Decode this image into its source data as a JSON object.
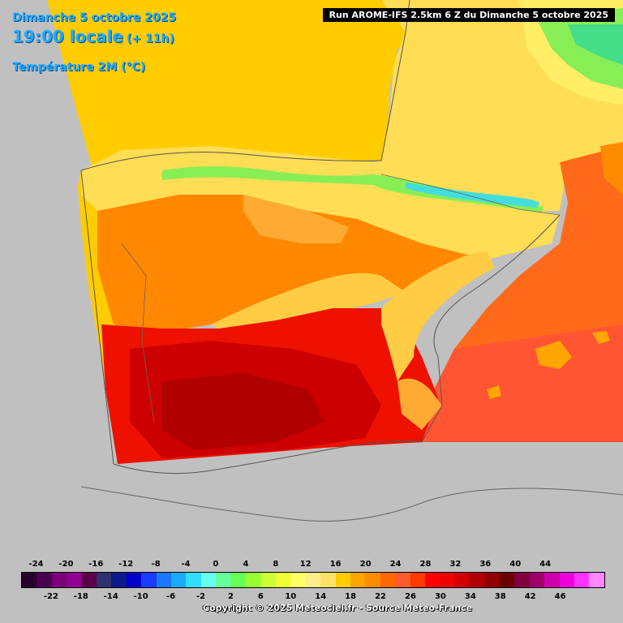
{
  "header": {
    "date": "Dimanche 5 octobre 2025",
    "time": "19:00 locale",
    "lead": "(+ 11h)",
    "parameter": "Température 2M (°C)"
  },
  "run_info": "Run AROME-IFS 2.5km 6 Z du Dimanche 5 octobre 2025",
  "copyright": "Copyright © 2025 Meteociel.fr - Source Meteo-France",
  "legend": {
    "colors": [
      "#2a0030",
      "#4a0050",
      "#7a007a",
      "#900090",
      "#5a004a",
      "#303070",
      "#0a1a8a",
      "#0000cc",
      "#1a3aff",
      "#1a78ff",
      "#1aaaff",
      "#33ddff",
      "#66ffee",
      "#66ff99",
      "#66ff55",
      "#99ff33",
      "#ccff33",
      "#eeff33",
      "#ffff66",
      "#ffee88",
      "#ffe066",
      "#ffcc00",
      "#ffa500",
      "#ff8c00",
      "#ff6a00",
      "#ff5a2a",
      "#ff3a00",
      "#ff0000",
      "#ee0000",
      "#d00000",
      "#b00000",
      "#900000",
      "#6a0000",
      "#800040",
      "#a0006a",
      "#cc00aa",
      "#ee00dd",
      "#ff33ff",
      "#ff88ff"
    ],
    "top_labels": [
      "-24",
      "-20",
      "-16",
      "-12",
      "-8",
      "-4",
      "0",
      "4",
      "8",
      "12",
      "16",
      "20",
      "24",
      "28",
      "32",
      "36",
      "40",
      "44"
    ],
    "bottom_labels": [
      "-22",
      "-18",
      "-14",
      "-10",
      "-6",
      "-2",
      "2",
      "6",
      "10",
      "14",
      "18",
      "22",
      "26",
      "30",
      "34",
      "38",
      "42",
      "46"
    ]
  },
  "map_colors": {
    "sea_grey": "#c0c0c0",
    "atlantic_warm": "#ffcc00",
    "med_sea": "#ff6a1a",
    "med_sea_south": "#ff5533",
    "hot_south": "#ee1100",
    "very_hot": "#cc0000",
    "interior_orange": "#ff8800",
    "north_yellow": "#ffdd55",
    "pyrenees_green": "#88ee55",
    "pyrenees_cyan": "#44dddd",
    "alps_green": "#77ee66"
  }
}
